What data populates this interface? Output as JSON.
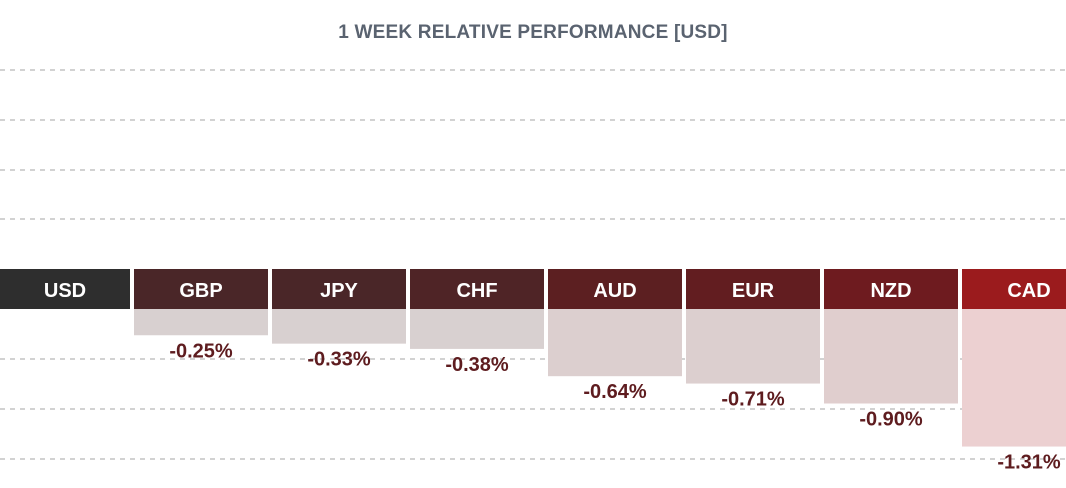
{
  "chart_data": {
    "type": "bar",
    "title": "1 WEEK RELATIVE PERFORMANCE  [USD]",
    "base_currency": "USD",
    "categories": [
      "GBP",
      "JPY",
      "CHF",
      "AUD",
      "EUR",
      "NZD",
      "CAD"
    ],
    "values": [
      -0.25,
      -0.33,
      -0.38,
      -0.64,
      -0.71,
      -0.9,
      -1.31
    ],
    "value_labels": [
      "-0.25%",
      "-0.33%",
      "-0.38%",
      "-0.64%",
      "-0.71%",
      "-0.90%",
      "-1.31%"
    ],
    "header_colors": [
      "#4a2628",
      "#4a2628",
      "#4f2426",
      "#5c1f21",
      "#621d20",
      "#6e1b1f",
      "#9b1b1d"
    ],
    "bar_colors": [
      "#d8d0d0",
      "#d8d0d0",
      "#d8d0d0",
      "#dccfcf",
      "#dccfcf",
      "#e0cece",
      "#ecd0d1"
    ],
    "base_header_color": "#2e2e2e",
    "label_color": "#5e1c1f",
    "grid": true
  }
}
